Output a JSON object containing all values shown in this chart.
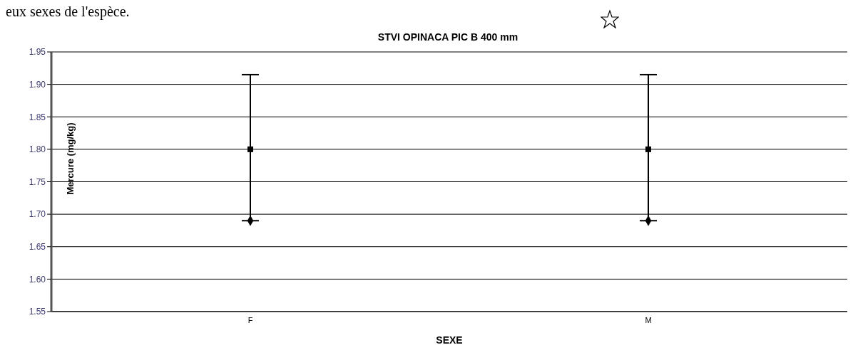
{
  "chart_data": {
    "type": "scatter",
    "title": "STVI OPINACA PIC B 400 mm",
    "xlabel": "SEXE",
    "ylabel": "Mercure (mg/kg)",
    "annotations": [
      "eux sexes de l'espèce."
    ],
    "categories": [
      "F",
      "M"
    ],
    "series": [
      {
        "values": [
          1.8,
          1.8
        ],
        "errors": [
          [
            1.69,
            1.915
          ],
          [
            1.69,
            1.915
          ]
        ],
        "color": "#000000",
        "marker": "square"
      },
      {
        "values": [
          1.69,
          1.69
        ],
        "color": "#000000",
        "marker": "diamond"
      }
    ],
    "ylim": [
      1.55,
      1.95
    ],
    "yticks": [
      1.55,
      {
        "value": 1.6,
        "label": "1.60"
      },
      1.65,
      {
        "value": 1.7,
        "label": "1.70"
      },
      1.75,
      {
        "value": 1.8,
        "label": "1.80"
      },
      1.85,
      {
        "value": 1.9,
        "label": "1.90"
      },
      1.95
    ],
    "grid": "y"
  }
}
